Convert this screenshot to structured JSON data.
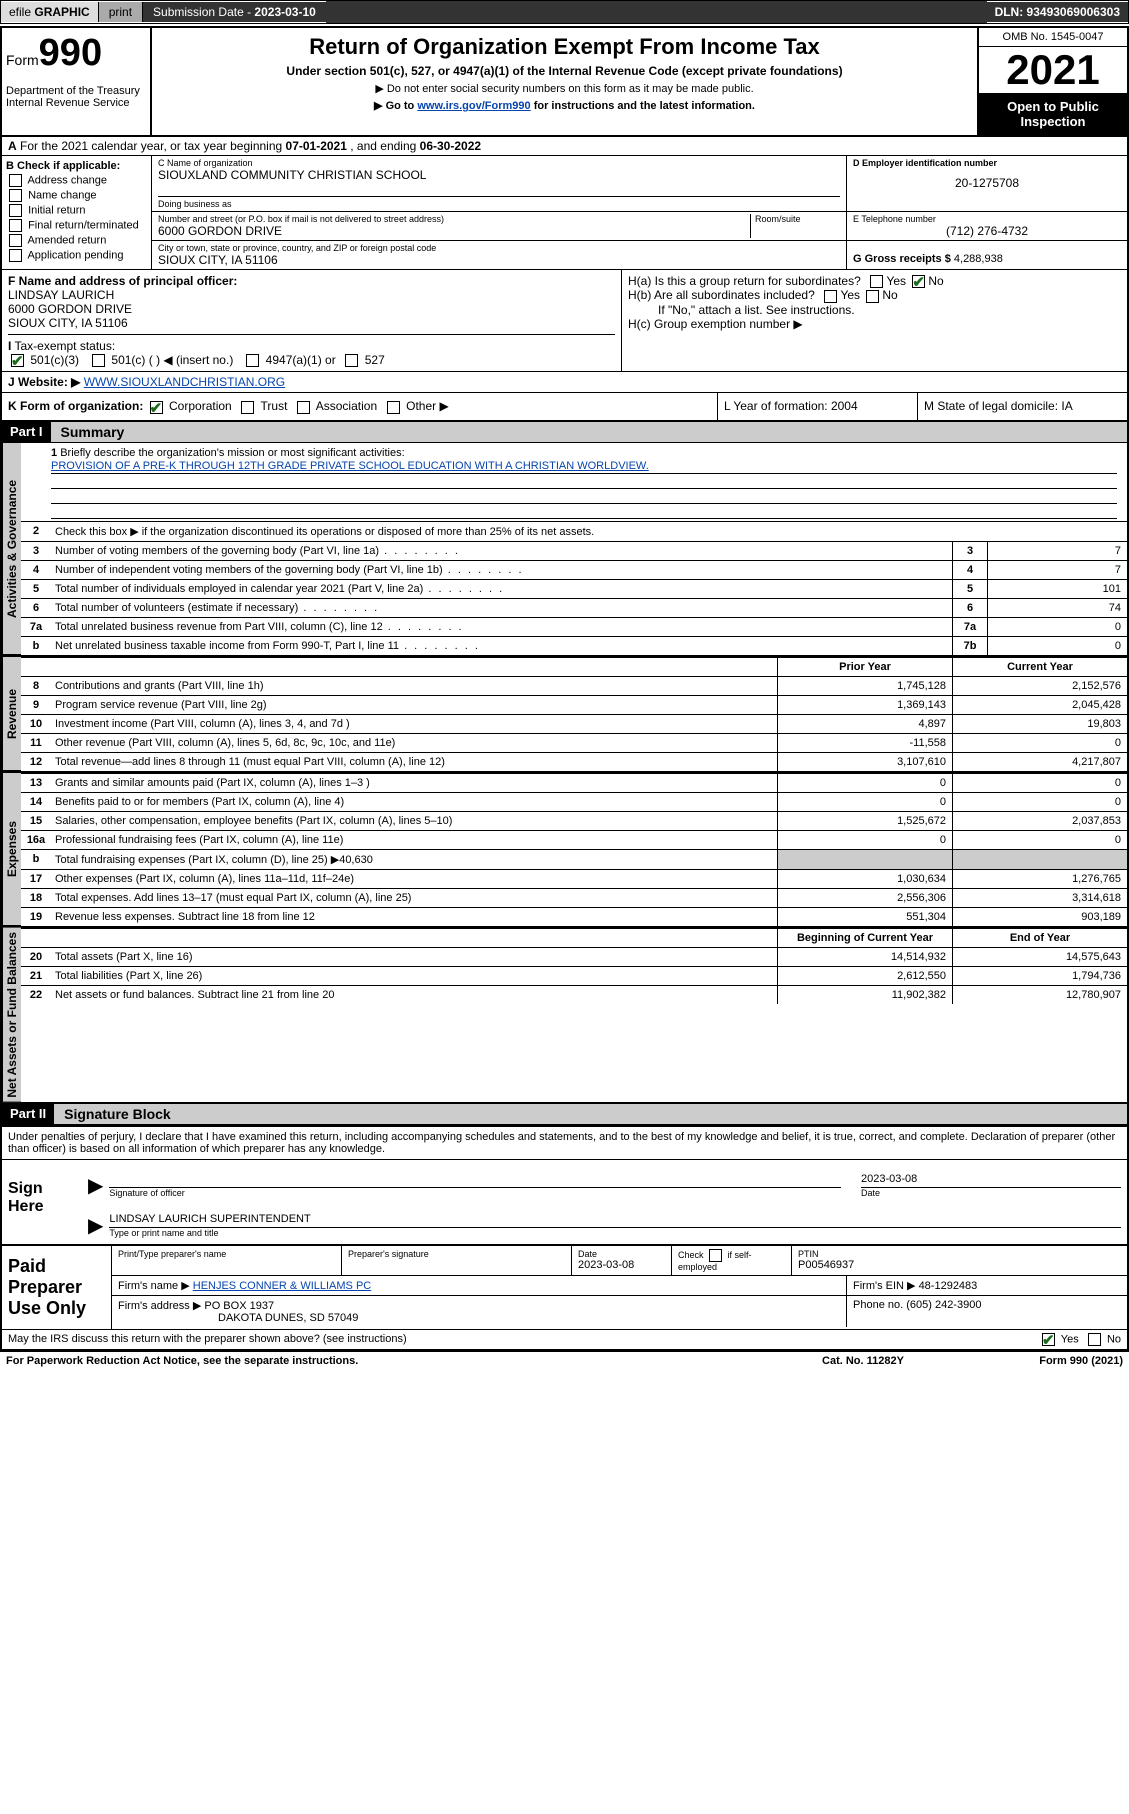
{
  "topbar": {
    "efile_prefix": "efile",
    "efile_bold": "GRAPHIC",
    "print": "print",
    "submission_label": "Submission Date - ",
    "submission_date": "2023-03-10",
    "dln": "DLN: 93493069006303"
  },
  "header": {
    "form_word": "Form",
    "form_num": "990",
    "dept": "Department of the Treasury\nInternal Revenue Service",
    "title": "Return of Organization Exempt From Income Tax",
    "sub1": "Under section 501(c), 527, or 4947(a)(1) of the Internal Revenue Code (except private foundations)",
    "sub2": "▶ Do not enter social security numbers on this form as it may be made public.",
    "sub3_pre": "▶ Go to ",
    "sub3_link": "www.irs.gov/Form990",
    "sub3_post": " for instructions and the latest information.",
    "omb": "OMB No. 1545-0047",
    "year": "2021",
    "inspect": "Open to Public Inspection"
  },
  "rowA": {
    "label": "A",
    "text_pre": "For the 2021 calendar year, or tax year beginning ",
    "begin": "07-01-2021",
    "mid": " , and ending ",
    "end": "06-30-2022"
  },
  "boxB": {
    "label": "B Check if applicable:",
    "items": [
      "Address change",
      "Name change",
      "Initial return",
      "Final return/terminated",
      "Amended return",
      "Application pending"
    ]
  },
  "boxC": {
    "label": "C Name of organization",
    "name": "SIOUXLAND COMMUNITY CHRISTIAN SCHOOL",
    "dba_label": "Doing business as",
    "addr_label": "Number and street (or P.O. box if mail is not delivered to street address)",
    "room_label": "Room/suite",
    "addr": "6000 GORDON DRIVE",
    "city_label": "City or town, state or province, country, and ZIP or foreign postal code",
    "city": "SIOUX CITY, IA  51106"
  },
  "boxD": {
    "label": "D Employer identification number",
    "value": "20-1275708"
  },
  "boxE": {
    "label": "E Telephone number",
    "value": "(712) 276-4732"
  },
  "boxG": {
    "label": "G Gross receipts $ ",
    "value": "4,288,938"
  },
  "boxF": {
    "label": "F Name and address of principal officer:",
    "name": "LINDSAY LAURICH",
    "addr1": "6000 GORDON DRIVE",
    "addr2": "SIOUX CITY, IA  51106"
  },
  "boxH": {
    "a": "H(a)  Is this a group return for subordinates?",
    "b": "H(b)  Are all subordinates included?",
    "b_note": "If \"No,\" attach a list. See instructions.",
    "c": "H(c)  Group exemption number ▶",
    "yes": "Yes",
    "no": "No"
  },
  "rowI": {
    "label": "I",
    "text": "Tax-exempt status:",
    "opts": [
      "501(c)(3)",
      "501(c) (  ) ◀ (insert no.)",
      "4947(a)(1) or",
      "527"
    ]
  },
  "rowJ": {
    "label": "J",
    "text": "Website: ▶",
    "value": "WWW.SIOUXLANDCHRISTIAN.ORG"
  },
  "rowK": {
    "label": "K Form of organization:",
    "opts": [
      "Corporation",
      "Trust",
      "Association",
      "Other ▶"
    ],
    "L": "L Year of formation: 2004",
    "M": "M State of legal domicile: IA"
  },
  "partI": {
    "hdr": "Part I",
    "title": "Summary"
  },
  "vert": {
    "gov": "Activities & Governance",
    "rev": "Revenue",
    "exp": "Expenses",
    "net": "Net Assets or Fund Balances"
  },
  "summary": {
    "q1_label": "1",
    "q1": "Briefly describe the organization's mission or most significant activities:",
    "q1_val": "PROVISION OF A PRE-K THROUGH 12TH GRADE PRIVATE SCHOOL EDUCATION WITH A CHRISTIAN WORLDVIEW.",
    "q2": "Check this box ▶    if the organization discontinued its operations or disposed of more than 25% of its net assets.",
    "rows": [
      {
        "n": "3",
        "desc": "Number of voting members of the governing body (Part VI, line 1a)",
        "box": "3",
        "val": "7"
      },
      {
        "n": "4",
        "desc": "Number of independent voting members of the governing body (Part VI, line 1b)",
        "box": "4",
        "val": "7"
      },
      {
        "n": "5",
        "desc": "Total number of individuals employed in calendar year 2021 (Part V, line 2a)",
        "box": "5",
        "val": "101"
      },
      {
        "n": "6",
        "desc": "Total number of volunteers (estimate if necessary)",
        "box": "6",
        "val": "74"
      },
      {
        "n": "7a",
        "desc": "Total unrelated business revenue from Part VIII, column (C), line 12",
        "box": "7a",
        "val": "0"
      },
      {
        "n": "  b",
        "desc": "Net unrelated business taxable income from Form 990-T, Part I, line 11",
        "box": "7b",
        "val": "0"
      }
    ]
  },
  "fin_headers": {
    "prior": "Prior Year",
    "current": "Current Year"
  },
  "revenue": [
    {
      "n": "8",
      "desc": "Contributions and grants (Part VIII, line 1h)",
      "v1": "1,745,128",
      "v2": "2,152,576"
    },
    {
      "n": "9",
      "desc": "Program service revenue (Part VIII, line 2g)",
      "v1": "1,369,143",
      "v2": "2,045,428"
    },
    {
      "n": "10",
      "desc": "Investment income (Part VIII, column (A), lines 3, 4, and 7d )",
      "v1": "4,897",
      "v2": "19,803"
    },
    {
      "n": "11",
      "desc": "Other revenue (Part VIII, column (A), lines 5, 6d, 8c, 9c, 10c, and 11e)",
      "v1": "-11,558",
      "v2": "0"
    },
    {
      "n": "12",
      "desc": "Total revenue—add lines 8 through 11 (must equal Part VIII, column (A), line 12)",
      "v1": "3,107,610",
      "v2": "4,217,807"
    }
  ],
  "expenses": [
    {
      "n": "13",
      "desc": "Grants and similar amounts paid (Part IX, column (A), lines 1–3 )",
      "v1": "0",
      "v2": "0"
    },
    {
      "n": "14",
      "desc": "Benefits paid to or for members (Part IX, column (A), line 4)",
      "v1": "0",
      "v2": "0"
    },
    {
      "n": "15",
      "desc": "Salaries, other compensation, employee benefits (Part IX, column (A), lines 5–10)",
      "v1": "1,525,672",
      "v2": "2,037,853"
    },
    {
      "n": "16a",
      "desc": "Professional fundraising fees (Part IX, column (A), line 11e)",
      "v1": "0",
      "v2": "0"
    },
    {
      "n": "b",
      "desc": "Total fundraising expenses (Part IX, column (D), line 25) ▶40,630",
      "shade": true,
      "v1": "",
      "v2": ""
    },
    {
      "n": "17",
      "desc": "Other expenses (Part IX, column (A), lines 11a–11d, 11f–24e)",
      "v1": "1,030,634",
      "v2": "1,276,765"
    },
    {
      "n": "18",
      "desc": "Total expenses. Add lines 13–17 (must equal Part IX, column (A), line 25)",
      "v1": "2,556,306",
      "v2": "3,314,618"
    },
    {
      "n": "19",
      "desc": "Revenue less expenses. Subtract line 18 from line 12",
      "v1": "551,304",
      "v2": "903,189"
    }
  ],
  "net_headers": {
    "begin": "Beginning of Current Year",
    "end": "End of Year"
  },
  "netassets": [
    {
      "n": "20",
      "desc": "Total assets (Part X, line 16)",
      "v1": "14,514,932",
      "v2": "14,575,643"
    },
    {
      "n": "21",
      "desc": "Total liabilities (Part X, line 26)",
      "v1": "2,612,550",
      "v2": "1,794,736"
    },
    {
      "n": "22",
      "desc": "Net assets or fund balances. Subtract line 21 from line 20",
      "v1": "11,902,382",
      "v2": "12,780,907"
    }
  ],
  "partII": {
    "hdr": "Part II",
    "title": "Signature Block",
    "jurat": "Under penalties of perjury, I declare that I have examined this return, including accompanying schedules and statements, and to the best of my knowledge and belief, it is true, correct, and complete. Declaration of preparer (other than officer) is based on all information of which preparer has any knowledge."
  },
  "sign": {
    "label": "Sign Here",
    "sig_caption": "Signature of officer",
    "date": "2023-03-08",
    "date_caption": "Date",
    "name": "LINDSAY LAURICH  SUPERINTENDENT",
    "name_caption": "Type or print name and title"
  },
  "paid": {
    "label": "Paid Preparer Use Only",
    "h1": "Print/Type preparer's name",
    "h2": "Preparer's signature",
    "h3": "Date",
    "h3v": "2023-03-08",
    "h4": "Check      if self-employed",
    "h5": "PTIN",
    "h5v": "P00546937",
    "firm_label": "Firm's name   ▶",
    "firm": "HENJES CONNER & WILLIAMS PC",
    "ein_label": "Firm's EIN ▶",
    "ein": "48-1292483",
    "addr_label": "Firm's address ▶",
    "addr1": "PO BOX 1937",
    "addr2": "DAKOTA DUNES, SD  57049",
    "phone_label": "Phone no.",
    "phone": "(605) 242-3900"
  },
  "footer": {
    "discuss": "May the IRS discuss this return with the preparer shown above? (see instructions)",
    "yes": "Yes",
    "no": "No",
    "paperwork": "For Paperwork Reduction Act Notice, see the separate instructions.",
    "cat": "Cat. No. 11282Y",
    "form": "Form 990 (2021)"
  }
}
